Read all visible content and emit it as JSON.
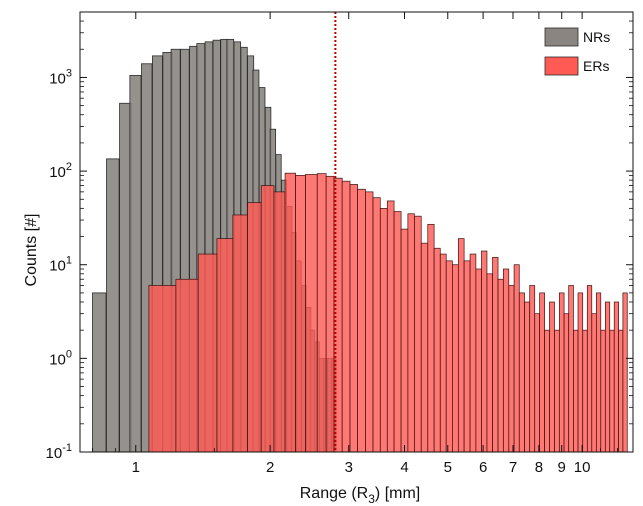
{
  "chart_data": {
    "type": "bar",
    "xlabel": "Range (R",
    "xlabel_sub": "3",
    "xlabel_tail": ") [mm]",
    "ylabel": "Counts [#]",
    "x_scale": "log",
    "y_scale": "log",
    "xlim": [
      0.75,
      13.0
    ],
    "ylim": [
      0.1,
      5000
    ],
    "x_ticks": [
      {
        "value": 1,
        "label": "1"
      },
      {
        "value": 2,
        "label": "2"
      },
      {
        "value": 3,
        "label": "3"
      },
      {
        "value": 4,
        "label": "4"
      },
      {
        "value": 5,
        "label": "5"
      },
      {
        "value": 6,
        "label": "6"
      },
      {
        "value": 7,
        "label": "7"
      },
      {
        "value": 8,
        "label": "8"
      },
      {
        "value": 9,
        "label": "9"
      },
      {
        "value": 10,
        "label": "10"
      }
    ],
    "y_ticks": [
      {
        "value": 0.1,
        "base": "10",
        "exp": "-1"
      },
      {
        "value": 1,
        "base": "10",
        "exp": "0"
      },
      {
        "value": 10,
        "base": "10",
        "exp": "1"
      },
      {
        "value": 100,
        "base": "10",
        "exp": "2"
      },
      {
        "value": 1000,
        "base": "10",
        "exp": "3"
      }
    ],
    "grid": false,
    "legend_position": "top-right",
    "vline": {
      "x": 2.8,
      "color": "#c00000",
      "style": "dotted"
    },
    "series": [
      {
        "name": "NRs",
        "color": "#8a8581",
        "x": [
          0.8,
          0.86,
          0.92,
          0.97,
          1.03,
          1.09,
          1.15,
          1.2,
          1.26,
          1.32,
          1.37,
          1.43,
          1.49,
          1.55,
          1.6,
          1.66,
          1.72,
          1.78,
          1.83,
          1.89,
          1.95,
          2.0,
          2.06,
          2.12,
          2.18,
          2.23,
          2.29,
          2.35,
          2.41,
          2.46,
          2.52,
          2.58,
          2.64,
          2.69,
          2.75
        ],
        "values": [
          5,
          135,
          530,
          1050,
          1400,
          1700,
          1850,
          2000,
          2000,
          2150,
          2300,
          2400,
          2500,
          2550,
          2550,
          2400,
          2100,
          1700,
          1200,
          780,
          480,
          280,
          150,
          80,
          42,
          22,
          11,
          6,
          3.5,
          2,
          1.5,
          1,
          1,
          1,
          1
        ]
      },
      {
        "name": "ERs",
        "color": "#ff5a54",
        "edge": [
          1.07,
          1.23,
          1.38,
          1.52,
          1.65,
          1.78,
          1.91,
          2.04,
          2.16,
          2.28,
          2.4,
          2.55,
          2.67,
          2.78,
          2.9,
          3.02,
          3.14,
          3.27,
          3.4,
          3.53,
          3.66,
          3.79,
          3.93,
          4.07,
          4.21,
          4.36,
          4.51,
          4.66,
          4.81,
          4.96,
          5.12,
          5.28,
          5.44,
          5.61,
          5.78,
          5.95,
          6.12,
          6.3,
          6.48,
          6.66,
          6.85,
          7.04,
          7.23,
          7.43,
          7.63,
          7.83,
          8.03,
          8.24,
          8.45,
          8.67,
          8.89,
          9.11,
          9.33,
          9.56,
          9.79,
          10.03,
          10.27,
          10.51,
          10.76,
          11.01,
          11.27,
          11.53,
          11.8,
          12.07,
          12.34,
          12.62
        ],
        "values": [
          6,
          7,
          13,
          19,
          34,
          46,
          70,
          60,
          95,
          90,
          92,
          94,
          88,
          84,
          78,
          72,
          64,
          60,
          52,
          40,
          48,
          37,
          24,
          35,
          33,
          17,
          27,
          15,
          13,
          11,
          10,
          19,
          11,
          13,
          9,
          14,
          8,
          12,
          7,
          9,
          6,
          10,
          5,
          4,
          6,
          3,
          5,
          2,
          4,
          2,
          5,
          3,
          6,
          2,
          5,
          2,
          6,
          3,
          5,
          2,
          4,
          2,
          4,
          2,
          5
        ]
      }
    ],
    "legend": [
      {
        "label": "NRs",
        "color": "#8a8581"
      },
      {
        "label": "ERs",
        "color": "#ff5a54"
      }
    ]
  }
}
